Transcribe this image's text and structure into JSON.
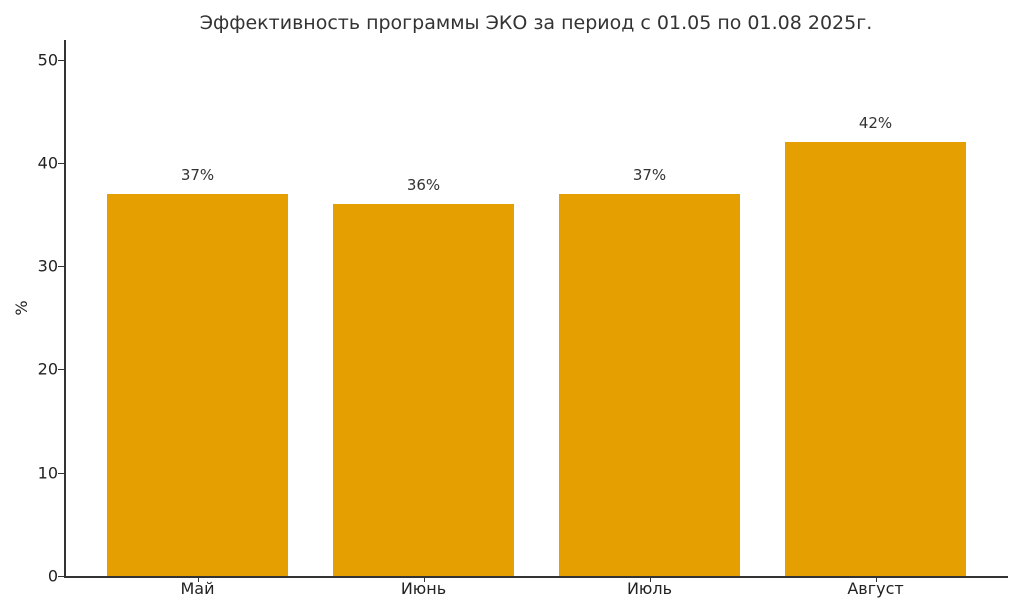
{
  "chart_data": {
    "type": "bar",
    "title": "Эффективность программы ЭКО за период с 01.05 по 01.08 2025г.",
    "xlabel": "",
    "ylabel": "%",
    "categories": [
      "Май",
      "Июнь",
      "Июль",
      "Август"
    ],
    "values": [
      37,
      36,
      37,
      42
    ],
    "data_labels": [
      "37%",
      "36%",
      "37%",
      "42%"
    ],
    "ylim": [
      0,
      52
    ],
    "yticks": [
      "0",
      "10",
      "20",
      "30",
      "40",
      "50"
    ],
    "grid": false,
    "legend": null,
    "bar_color": "#E69F00"
  }
}
